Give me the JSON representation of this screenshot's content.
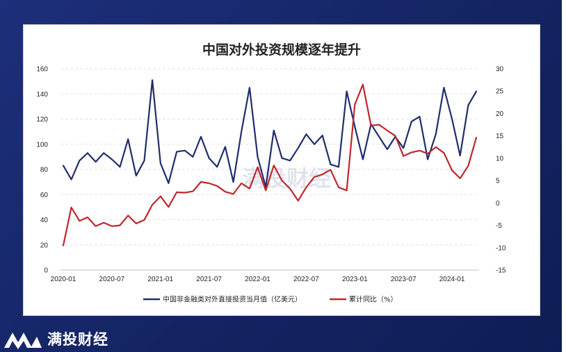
{
  "brand": {
    "name": "满投财经",
    "watermark": "满投财经"
  },
  "chart_data": {
    "type": "line",
    "title": "中国对外投资规模逐年提升",
    "x_tick_labels": [
      "2020-01",
      "2020-07",
      "2021-01",
      "2021-07",
      "2022-01",
      "2022-07",
      "2023-01",
      "2023-07",
      "2024-01"
    ],
    "y_left": {
      "lim": [
        0,
        160
      ],
      "ticks": [
        0,
        20,
        40,
        60,
        80,
        100,
        120,
        140,
        160
      ]
    },
    "y_right": {
      "lim": [
        -15,
        30
      ],
      "ticks": [
        -15,
        -10,
        -5,
        0,
        5,
        10,
        15,
        20,
        25,
        30
      ]
    },
    "x": [
      "2020-01",
      "2020-02",
      "2020-03",
      "2020-04",
      "2020-05",
      "2020-06",
      "2020-07",
      "2020-08",
      "2020-09",
      "2020-10",
      "2020-11",
      "2020-12",
      "2021-01",
      "2021-02",
      "2021-03",
      "2021-04",
      "2021-05",
      "2021-06",
      "2021-07",
      "2021-08",
      "2021-09",
      "2021-10",
      "2021-11",
      "2021-12",
      "2022-01",
      "2022-02",
      "2022-03",
      "2022-04",
      "2022-05",
      "2022-06",
      "2022-07",
      "2022-08",
      "2022-09",
      "2022-10",
      "2022-11",
      "2022-12",
      "2023-01",
      "2023-02",
      "2023-03",
      "2023-04",
      "2023-05",
      "2023-06",
      "2023-07",
      "2023-08",
      "2023-09",
      "2023-10",
      "2023-11",
      "2023-12",
      "2024-01",
      "2024-02",
      "2024-03",
      "2024-04"
    ],
    "series": [
      {
        "name": "中国非金融类对外直接投资当月值（亿美元）",
        "axis": "left",
        "color": "#1f2d6b",
        "values": [
          83,
          72,
          87,
          93,
          86,
          93,
          88,
          82,
          104,
          75,
          87,
          151,
          85,
          69,
          94,
          95,
          90,
          106,
          89,
          82,
          98,
          70,
          110,
          145,
          90,
          66,
          111,
          89,
          87,
          97,
          108,
          100,
          107,
          84,
          82,
          142,
          114,
          88,
          116,
          106,
          96,
          106,
          97,
          118,
          122,
          88,
          108,
          145,
          120,
          91,
          131,
          142
        ]
      },
      {
        "name": "累计同比（%）",
        "axis": "right",
        "color": "#c0262d",
        "values": [
          -9.5,
          -1,
          -4,
          -3.2,
          -5.2,
          -4.4,
          -5.2,
          -5,
          -2.8,
          -4.6,
          -3.8,
          -0.4,
          1.5,
          -0.9,
          2.4,
          2.3,
          2.6,
          4.7,
          4.4,
          3.8,
          2.5,
          2,
          4.4,
          3.2,
          8,
          2.8,
          8.4,
          5,
          3.2,
          0.5,
          3.5,
          5.8,
          6.4,
          7.4,
          3.5,
          2.8,
          22,
          26.5,
          17.3,
          17.5,
          16.2,
          15,
          10.5,
          11.3,
          11.7,
          11,
          12.5,
          11.2,
          7.3,
          5.5,
          8.3,
          14.6
        ]
      }
    ]
  }
}
